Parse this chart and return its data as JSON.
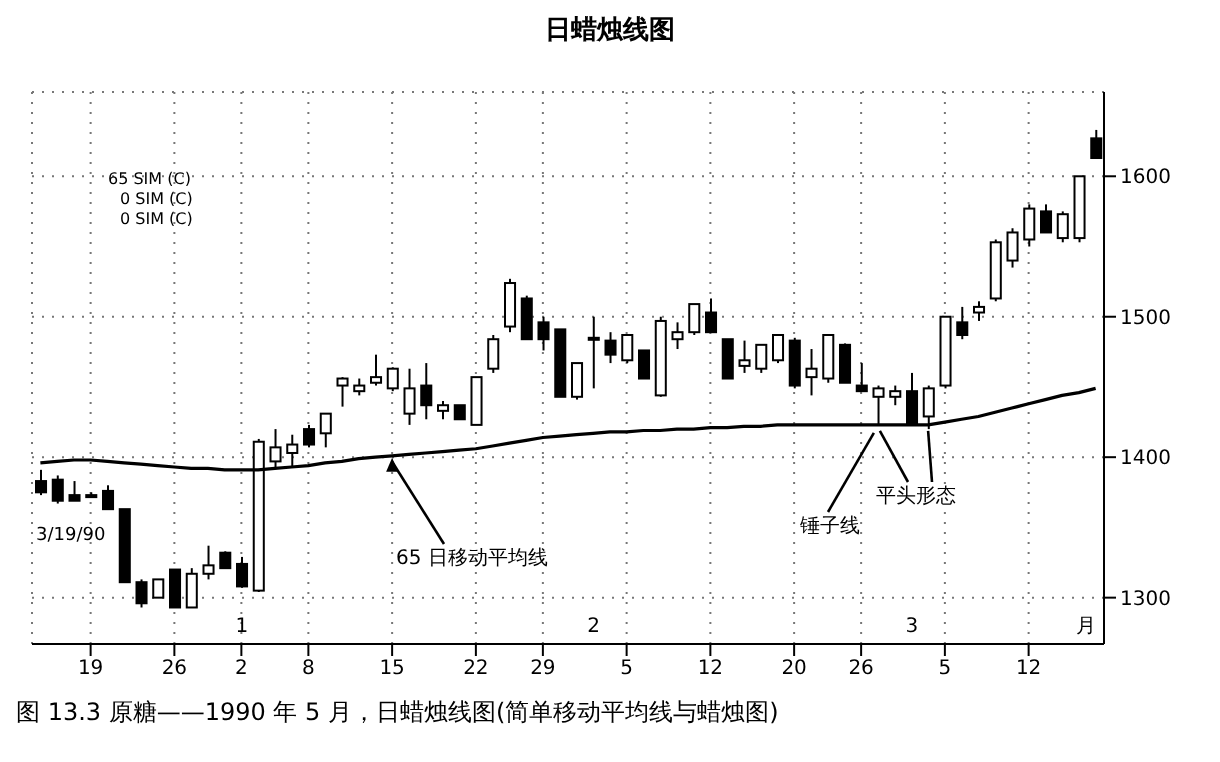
{
  "chart_data": {
    "type": "candlestick",
    "title": "日蜡烛线图",
    "categories": [
      null,
      null,
      null,
      "19",
      null,
      null,
      null,
      null,
      "26",
      null,
      null,
      null,
      "2",
      null,
      null,
      null,
      "8",
      null,
      null,
      null,
      null,
      "15",
      null,
      null,
      null,
      null,
      "22",
      null,
      null,
      null,
      "29",
      null,
      null,
      null,
      null,
      "5",
      null,
      null,
      null,
      null,
      "12",
      null,
      null,
      null,
      null,
      "20",
      null,
      null,
      null,
      "26",
      null,
      null,
      null,
      null,
      "5",
      null,
      null,
      null,
      null,
      "12",
      null,
      null,
      null,
      null
    ],
    "ohlc": [
      [
        1383,
        1391,
        1373,
        1375
      ],
      [
        1384,
        1387,
        1367,
        1369
      ],
      [
        1373,
        1383,
        1369,
        1369
      ],
      [
        1373,
        1375,
        1371,
        1372
      ],
      [
        1376,
        1380,
        1363,
        1363
      ],
      [
        1363,
        1363,
        1311,
        1311
      ],
      [
        1311,
        1313,
        1293,
        1296
      ],
      [
        1300,
        1313,
        1300,
        1313
      ],
      [
        1320,
        1320,
        1293,
        1293
      ],
      [
        1293,
        1321,
        1293,
        1317
      ],
      [
        1317,
        1337,
        1313,
        1323
      ],
      [
        1332,
        1333,
        1321,
        1321
      ],
      [
        1324,
        1329,
        1307,
        1308
      ],
      [
        1305,
        1413,
        1304,
        1411
      ],
      [
        1397,
        1420,
        1393,
        1407
      ],
      [
        1403,
        1416,
        1393,
        1409
      ],
      [
        1420,
        1423,
        1407,
        1409
      ],
      [
        1417,
        1431,
        1407,
        1431
      ],
      [
        1451,
        1457,
        1436,
        1456
      ],
      [
        1447,
        1456,
        1444,
        1451
      ],
      [
        1453,
        1473,
        1451,
        1457
      ],
      [
        1449,
        1464,
        1447,
        1463
      ],
      [
        1431,
        1463,
        1423,
        1449
      ],
      [
        1451,
        1467,
        1427,
        1437
      ],
      [
        1433,
        1440,
        1427,
        1437
      ],
      [
        1437,
        1437,
        1427,
        1427
      ],
      [
        1423,
        1457,
        1423,
        1457
      ],
      [
        1463,
        1487,
        1460,
        1484
      ],
      [
        1493,
        1527,
        1489,
        1524
      ],
      [
        1513,
        1515,
        1484,
        1484
      ],
      [
        1496,
        1500,
        1476,
        1484
      ],
      [
        1491,
        1491,
        1443,
        1443
      ],
      [
        1443,
        1467,
        1441,
        1467
      ],
      [
        1484,
        1500,
        1449,
        1485
      ],
      [
        1483,
        1489,
        1467,
        1473
      ],
      [
        1469,
        1487,
        1467,
        1487
      ],
      [
        1476,
        1476,
        1456,
        1456
      ],
      [
        1444,
        1500,
        1443,
        1497
      ],
      [
        1484,
        1496,
        1477,
        1489
      ],
      [
        1489,
        1509,
        1487,
        1509
      ],
      [
        1503,
        1513,
        1489,
        1489
      ],
      [
        1484,
        1484,
        1456,
        1456
      ],
      [
        1465,
        1483,
        1460,
        1469
      ],
      [
        1463,
        1480,
        1460,
        1480
      ],
      [
        1469,
        1487,
        1467,
        1487
      ],
      [
        1483,
        1485,
        1449,
        1451
      ],
      [
        1457,
        1477,
        1444,
        1463
      ],
      [
        1456,
        1487,
        1453,
        1487
      ],
      [
        1480,
        1481,
        1453,
        1453
      ],
      [
        1451,
        1467,
        1447,
        1447
      ],
      [
        1443,
        1451,
        1423,
        1449
      ],
      [
        1443,
        1451,
        1437,
        1447
      ],
      [
        1447,
        1460,
        1423,
        1424
      ],
      [
        1429,
        1451,
        1420,
        1449
      ],
      [
        1451,
        1500,
        1449,
        1500
      ],
      [
        1496,
        1507,
        1484,
        1487
      ],
      [
        1503,
        1511,
        1497,
        1507
      ],
      [
        1513,
        1555,
        1511,
        1553
      ],
      [
        1540,
        1563,
        1535,
        1560
      ],
      [
        1555,
        1580,
        1550,
        1577
      ],
      [
        1575,
        1580,
        1560,
        1560
      ],
      [
        1556,
        1575,
        1553,
        1573
      ],
      [
        1556,
        1600,
        1553,
        1600
      ],
      [
        1627,
        1633,
        1613,
        1613
      ]
    ],
    "series": [
      {
        "type": "line",
        "color": "#000000",
        "values": [
          1396,
          1397,
          1398,
          1398,
          1397,
          1396,
          1395,
          1394,
          1393,
          1392,
          1392,
          1391,
          1391,
          1391,
          1392,
          1393,
          1394,
          1396,
          1397,
          1399,
          1400,
          1401,
          1402,
          1403,
          1404,
          1405,
          1406,
          1408,
          1410,
          1412,
          1414,
          1415,
          1416,
          1417,
          1418,
          1418,
          1419,
          1419,
          1420,
          1420,
          1421,
          1421,
          1422,
          1422,
          1423,
          1423,
          1423,
          1423,
          1423,
          1423,
          1423,
          1423,
          1423,
          1423,
          1425,
          1427,
          1429,
          1432,
          1435,
          1438,
          1441,
          1444,
          1446,
          1449
        ]
      }
    ],
    "ylim": [
      1267,
      1660
    ],
    "yticks": [
      1300,
      1400,
      1500,
      1600
    ],
    "grid": true,
    "annotations": [
      "65 SIM (C)",
      "0 SIM (C)",
      "0 SIM (C)",
      "3/19/90",
      {
        "text": "65 日移动平均线",
        "x": "15",
        "y": 1401
      },
      "锤子线",
      "平头形态",
      "1",
      "2",
      "3",
      "月",
      "图 13.3  原糖——1990 年 5 月，日蜡烛线图(简单移动平均线与蜡烛图)"
    ]
  }
}
